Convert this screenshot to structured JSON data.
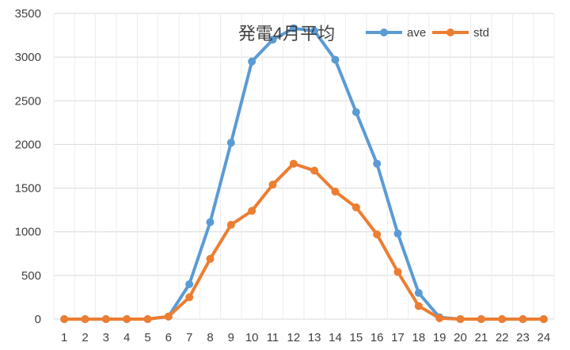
{
  "chart_data": {
    "type": "line",
    "title": "発電4月平均",
    "xlabel": "",
    "ylabel": "",
    "categories": [
      "1",
      "2",
      "3",
      "4",
      "5",
      "6",
      "7",
      "8",
      "9",
      "10",
      "11",
      "12",
      "13",
      "14",
      "15",
      "16",
      "17",
      "18",
      "19",
      "20",
      "21",
      "22",
      "23",
      "24"
    ],
    "ylim": [
      0,
      3500
    ],
    "yticks": [
      0,
      500,
      1000,
      1500,
      2000,
      2500,
      3000,
      3500
    ],
    "grid": true,
    "legend_position": "top-right",
    "series": [
      {
        "name": "ave",
        "color": "#5b9bd5",
        "values": [
          0,
          0,
          0,
          0,
          0,
          30,
          400,
          1110,
          2020,
          2950,
          3200,
          3330,
          3300,
          2970,
          2370,
          1780,
          980,
          300,
          20,
          0,
          0,
          0,
          0,
          0
        ]
      },
      {
        "name": "std",
        "color": "#ed7d31",
        "values": [
          0,
          0,
          0,
          0,
          0,
          30,
          250,
          690,
          1080,
          1240,
          1540,
          1780,
          1700,
          1460,
          1280,
          970,
          540,
          150,
          10,
          0,
          0,
          0,
          0,
          0
        ]
      }
    ]
  }
}
